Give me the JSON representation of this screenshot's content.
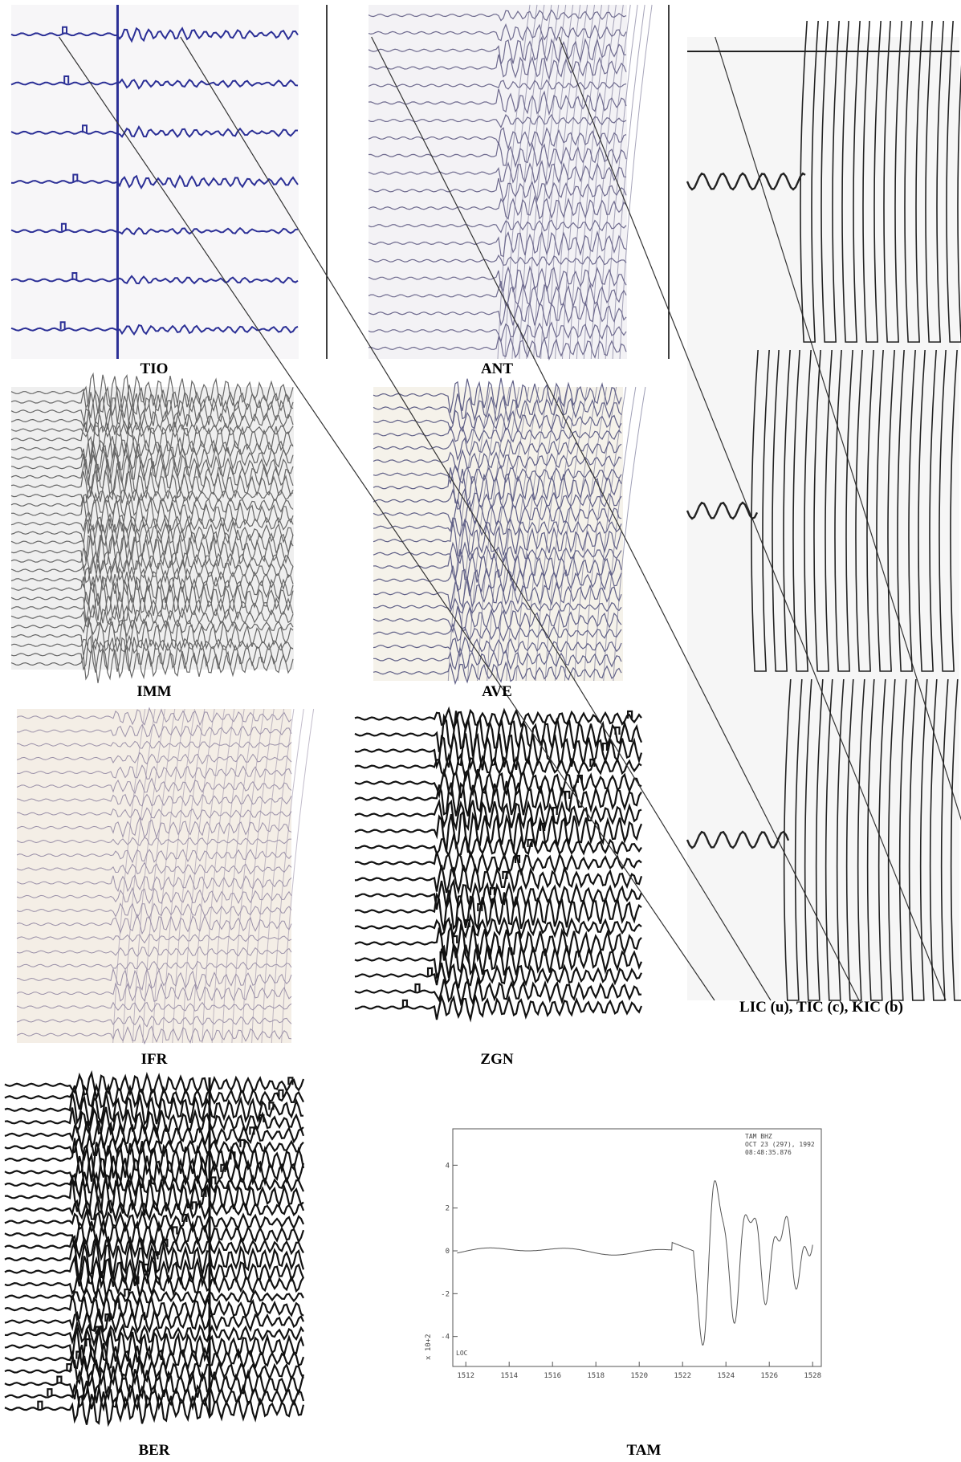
{
  "panels": [
    {
      "label": "TIO"
    },
    {
      "label": "ANT"
    },
    {
      "label": "IMM"
    },
    {
      "label": "AVE"
    },
    {
      "label": "IFR"
    },
    {
      "label": "ZGN"
    },
    {
      "label": "LIC (u), TIC (c), KIC (b)"
    },
    {
      "label": "BER"
    },
    {
      "label": "TAM"
    }
  ],
  "tam_plot": {
    "header": [
      "TAM  BHZ",
      "OCT 23 (297), 1992",
      "08:48:35.876"
    ],
    "y_axis_label": "x 10+2",
    "corner_label": "LOC",
    "xlim": [
      1511.4,
      1528.4
    ],
    "ylim": [
      -5.4,
      5.7
    ],
    "xticks": [
      1512,
      1514,
      1516,
      1518,
      1520,
      1522,
      1524,
      1526,
      1528
    ],
    "yticks": [
      4,
      2,
      0,
      -2,
      -4
    ]
  }
}
